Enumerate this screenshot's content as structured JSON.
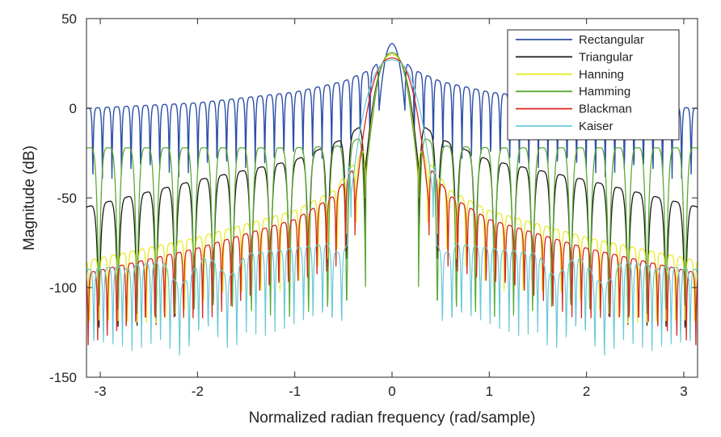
{
  "chart_data": {
    "type": "line",
    "title": "",
    "xlabel": "Normalized radian frequency (rad/sample)",
    "ylabel": "Magnitude (dB)",
    "xlim": [
      -3.1416,
      3.1416
    ],
    "ylim": [
      -150,
      50
    ],
    "xticks": [
      -3,
      -2,
      -1,
      0,
      1,
      2,
      3
    ],
    "yticks": [
      50,
      0,
      -50,
      -100,
      -150
    ],
    "xtick_labels": [
      "-3",
      "-2",
      "-1",
      "0",
      "1",
      "2",
      "3"
    ],
    "ytick_labels": [
      "50",
      "0",
      "-50",
      "-100",
      "-150"
    ],
    "grid": false,
    "legend_position": "top-right",
    "series": [
      {
        "name": "Rectangular",
        "color": "#2b4ea6",
        "window": "rectangular",
        "peak_db": 36,
        "sidelobe_curve": [
          [
            0.0,
            36
          ],
          [
            0.2,
            22
          ],
          [
            0.5,
            15
          ],
          [
            1.0,
            9
          ],
          [
            2.0,
            3
          ],
          [
            3.1416,
            0
          ]
        ],
        "null_depth_db": 16,
        "width": 1.4
      },
      {
        "name": "Triangular",
        "color": "#1a1a1a",
        "window": "triangular",
        "peak_db": 30,
        "sidelobe_curve": [
          [
            0.0,
            30
          ],
          [
            0.25,
            -7
          ],
          [
            0.5,
            -17
          ],
          [
            1.0,
            -29
          ],
          [
            2.0,
            -40
          ],
          [
            3.1416,
            -55
          ]
        ],
        "null_depth_db": 50,
        "width": 1.3
      },
      {
        "name": "Hanning",
        "color": "#e9e92a",
        "window": "hanning",
        "peak_db": 30,
        "sidelobe_curve": [
          [
            0.0,
            30
          ],
          [
            0.3,
            -24
          ],
          [
            0.6,
            -46
          ],
          [
            1.0,
            -57
          ],
          [
            2.0,
            -72
          ],
          [
            3.1416,
            -85
          ]
        ],
        "null_depth_db": 18,
        "width": 1.3
      },
      {
        "name": "Hamming",
        "color": "#5aaa32",
        "window": "hamming",
        "peak_db": 31,
        "sidelobe_curve": [
          [
            0.0,
            31
          ],
          [
            0.2,
            -13
          ],
          [
            0.5,
            -21
          ],
          [
            1.0,
            -22
          ],
          [
            2.0,
            -22
          ],
          [
            3.1416,
            -22
          ]
        ],
        "null_depth_db": 70,
        "width": 1.3
      },
      {
        "name": "Blackman",
        "color": "#d8261e",
        "window": "blackman",
        "peak_db": 28,
        "sidelobe_curve": [
          [
            0.0,
            28
          ],
          [
            0.35,
            -30
          ],
          [
            0.6,
            -49
          ],
          [
            1.0,
            -62
          ],
          [
            2.0,
            -78
          ],
          [
            3.1416,
            -92
          ]
        ],
        "null_depth_db": 16,
        "width": 1.3
      },
      {
        "name": "Kaiser",
        "color": "#6ac9d8",
        "window": "kaiser",
        "peak_db": 27,
        "sidelobe_curve": [
          [
            0.0,
            27
          ],
          [
            0.45,
            -30
          ],
          [
            0.46,
            -74
          ],
          [
            1.0,
            -78
          ],
          [
            2.0,
            -84
          ],
          [
            3.1416,
            -90
          ]
        ],
        "null_depth_db": 22,
        "width": 1.2
      }
    ]
  }
}
